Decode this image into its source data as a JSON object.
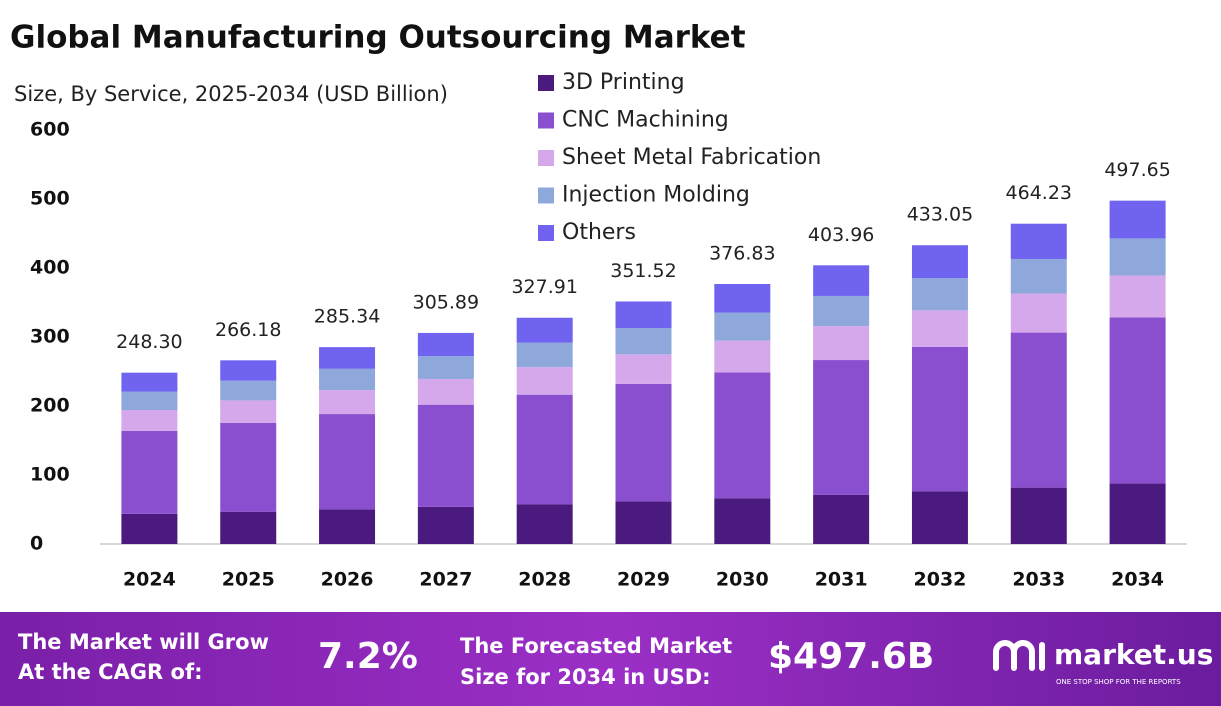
{
  "chart_data": {
    "type": "stacked-bar",
    "title": "Global Manufacturing Outsourcing Market",
    "subtitle": "Size, By Service, 2025-2034 (USD Billion)",
    "categories": [
      "2024",
      "2025",
      "2026",
      "2027",
      "2028",
      "2029",
      "2030",
      "2031",
      "2032",
      "2033",
      "2034"
    ],
    "series": [
      {
        "name": "3D Printing",
        "color": "#4b1a7e",
        "values": [
          43.7,
          46.8,
          50.2,
          53.8,
          57.7,
          61.9,
          66.3,
          71.1,
          76.2,
          81.7,
          87.6
        ]
      },
      {
        "name": "CNC Machining",
        "color": "#8a4fcf",
        "values": [
          120.2,
          128.8,
          138.1,
          148.1,
          158.7,
          170.1,
          182.4,
          195.5,
          209.6,
          224.7,
          240.9
        ]
      },
      {
        "name": "Sheet Metal Fabrication",
        "color": "#d5a8ec",
        "values": [
          30.3,
          32.5,
          34.8,
          37.3,
          40.0,
          42.9,
          46.0,
          49.3,
          52.8,
          56.6,
          60.7
        ]
      },
      {
        "name": "Injection Molding",
        "color": "#8ea8dc",
        "values": [
          26.8,
          28.7,
          30.8,
          33.0,
          35.4,
          38.0,
          40.7,
          43.6,
          46.8,
          50.1,
          53.7
        ]
      },
      {
        "name": "Others",
        "color": "#6f63f0",
        "values": [
          27.3,
          29.4,
          31.4,
          33.7,
          36.1,
          38.6,
          41.4,
          44.4,
          47.6,
          51.1,
          54.7
        ]
      }
    ],
    "totals": [
      {
        "value": 248.3,
        "label": "248.30"
      },
      266.18,
      285.34,
      305.89,
      327.91,
      351.52,
      376.83,
      403.96,
      433.05,
      464.23,
      497.65
    ],
    "ylim": [
      0,
      600
    ],
    "yticks": [
      0,
      100,
      200,
      300,
      400,
      500,
      600
    ]
  },
  "footer": {
    "cagr_text": [
      "The Market will Grow",
      "At the CAGR of:"
    ],
    "cagr": "7.2%",
    "size_text": [
      "The Forecasted Market",
      "Size for 2034 in USD:"
    ],
    "size": "$497.6B",
    "brand": "market.us",
    "tagline": "ONE STOP SHOP FOR THE REPORTS"
  }
}
